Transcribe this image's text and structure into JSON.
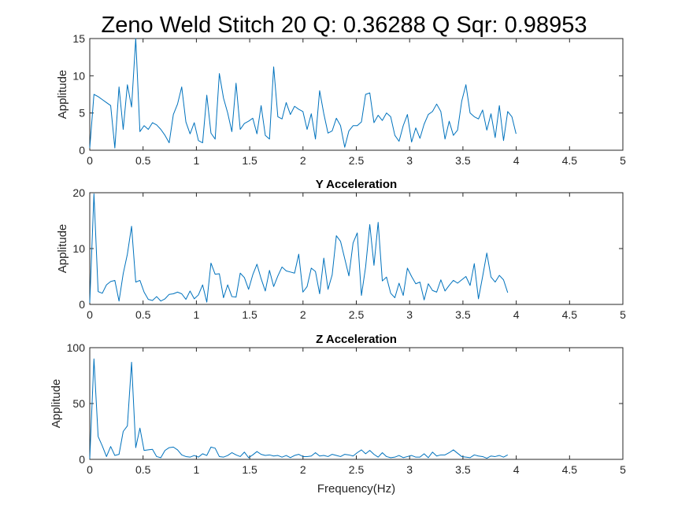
{
  "figure": {
    "title": "Zeno Weld Stitch  20   Q: 0.36288   Q Sqr: 0.98953",
    "line_color": "#0072BD"
  },
  "chart_data": [
    {
      "type": "line",
      "title": "",
      "xlabel": "",
      "ylabel": "Applitude",
      "xlim": [
        0,
        5
      ],
      "ylim": [
        0,
        15
      ],
      "xticks": [
        "0",
        "0.5",
        "1",
        "1.5",
        "2",
        "2.5",
        "3",
        "3.5",
        "4",
        "4.5",
        "5"
      ],
      "yticks": [
        "0",
        "5",
        "10",
        "15"
      ],
      "ytick_values": [
        0,
        5,
        10,
        15
      ],
      "grid": false,
      "x_step": 0.0392,
      "series": [
        {
          "values": [
            0.3,
            7.5,
            7.2,
            6.8,
            6.4,
            6.0,
            0.3,
            8.5,
            2.8,
            8.8,
            5.8,
            15.0,
            2.5,
            3.3,
            2.8,
            3.7,
            3.4,
            2.8,
            2.0,
            1.0,
            4.8,
            6.2,
            8.5,
            3.8,
            2.2,
            3.7,
            1.3,
            1.0,
            7.4,
            2.3,
            1.5,
            10.3,
            7.0,
            5.0,
            2.5,
            9.0,
            2.8,
            3.6,
            3.9,
            4.3,
            2.2,
            6.0,
            2.0,
            1.5,
            11.2,
            4.5,
            4.2,
            6.4,
            4.8,
            5.9,
            5.5,
            5.2,
            2.8,
            4.9,
            1.5,
            8.0,
            4.9,
            2.3,
            2.6,
            4.3,
            3.3,
            0.4,
            2.6,
            3.3,
            3.3,
            3.8,
            7.5,
            7.7,
            3.7,
            4.7,
            4.0,
            5.0,
            4.5,
            2.0,
            1.2,
            3.3,
            4.8,
            1.1,
            3.0,
            1.6,
            3.5,
            4.8,
            5.2,
            6.2,
            5.2,
            1.5,
            3.9,
            2.0,
            2.7,
            6.6,
            8.8,
            5.0,
            4.5,
            4.2,
            5.4,
            2.7,
            4.9,
            1.7,
            6.0,
            1.3,
            5.2,
            4.5,
            2.2
          ]
        }
      ]
    },
    {
      "type": "line",
      "title": "Y Acceleration",
      "xlabel": "",
      "ylabel": "Applitude",
      "xlim": [
        0,
        5
      ],
      "ylim": [
        0,
        20
      ],
      "xticks": [
        "0",
        "0.5",
        "1",
        "1.5",
        "2",
        "2.5",
        "3",
        "3.5",
        "4",
        "4.5",
        "5"
      ],
      "yticks": [
        "0",
        "10",
        "20"
      ],
      "ytick_values": [
        0,
        10,
        20
      ],
      "grid": false,
      "x_step": 0.0392,
      "series": [
        {
          "values": [
            0.3,
            19.8,
            2.3,
            2.0,
            3.5,
            4.1,
            4.3,
            0.6,
            5.5,
            9.0,
            14.0,
            4.0,
            4.3,
            2.2,
            0.9,
            0.7,
            1.4,
            0.6,
            1.0,
            1.8,
            1.9,
            2.2,
            1.9,
            0.9,
            2.4,
            1.0,
            1.7,
            3.5,
            0.4,
            7.4,
            5.4,
            5.5,
            1.2,
            3.5,
            1.4,
            1.3,
            5.6,
            4.8,
            2.7,
            5.3,
            7.2,
            4.6,
            2.4,
            6.1,
            3.2,
            5.1,
            6.7,
            6.0,
            5.8,
            5.6,
            9.0,
            2.2,
            3.2,
            6.5,
            5.9,
            1.9,
            8.3,
            2.7,
            5.3,
            12.3,
            11.3,
            8.2,
            5.1,
            11.0,
            12.8,
            1.6,
            6.7,
            14.3,
            7.0,
            14.7,
            4.2,
            4.9,
            2.0,
            1.2,
            3.8,
            1.6,
            6.5,
            5.0,
            3.7,
            4.0,
            0.8,
            3.7,
            2.5,
            2.2,
            4.4,
            2.4,
            3.4,
            4.3,
            3.8,
            4.4,
            5.0,
            3.4,
            7.3,
            1.0,
            5.0,
            9.2,
            4.9,
            4.0,
            5.2,
            4.4,
            2.1
          ]
        }
      ]
    },
    {
      "type": "line",
      "title": "Z Acceleration",
      "xlabel": "Frequency(Hz)",
      "ylabel": "Applitude",
      "xlim": [
        0,
        5
      ],
      "ylim": [
        0,
        100
      ],
      "xticks": [
        "0",
        "0.5",
        "1",
        "1.5",
        "2",
        "2.5",
        "3",
        "3.5",
        "4",
        "4.5",
        "5"
      ],
      "yticks": [
        "0",
        "50",
        "100"
      ],
      "ytick_values": [
        0,
        50,
        100
      ],
      "grid": false,
      "x_step": 0.0392,
      "series": [
        {
          "values": [
            0.5,
            90.0,
            20.5,
            12.0,
            2.5,
            11.5,
            3.5,
            4.5,
            25.0,
            30.0,
            87.0,
            10.5,
            28.0,
            8.0,
            8.5,
            9.0,
            2.5,
            1.5,
            8.0,
            10.5,
            11.0,
            8.5,
            4.0,
            2.5,
            2.0,
            3.5,
            2.0,
            5.0,
            3.5,
            11.0,
            10.0,
            2.5,
            2.0,
            3.5,
            6.0,
            4.0,
            2.5,
            6.5,
            1.5,
            4.0,
            7.0,
            4.5,
            3.5,
            4.0,
            3.0,
            3.5,
            2.0,
            3.5,
            1.5,
            3.5,
            4.5,
            2.5,
            2.5,
            3.0,
            6.0,
            3.0,
            3.5,
            2.5,
            4.5,
            3.5,
            2.5,
            4.5,
            4.0,
            3.0,
            6.0,
            8.5,
            5.0,
            8.0,
            4.5,
            2.0,
            6.0,
            2.5,
            1.5,
            2.0,
            3.5,
            1.5,
            2.5,
            3.5,
            2.0,
            2.0,
            5.0,
            1.5,
            6.5,
            3.0,
            4.0,
            4.0,
            6.0,
            8.5,
            5.5,
            2.5,
            2.0,
            1.5,
            4.0,
            3.0,
            2.5,
            1.0,
            3.0,
            2.5,
            3.5,
            2.0,
            4.0
          ]
        }
      ]
    }
  ]
}
